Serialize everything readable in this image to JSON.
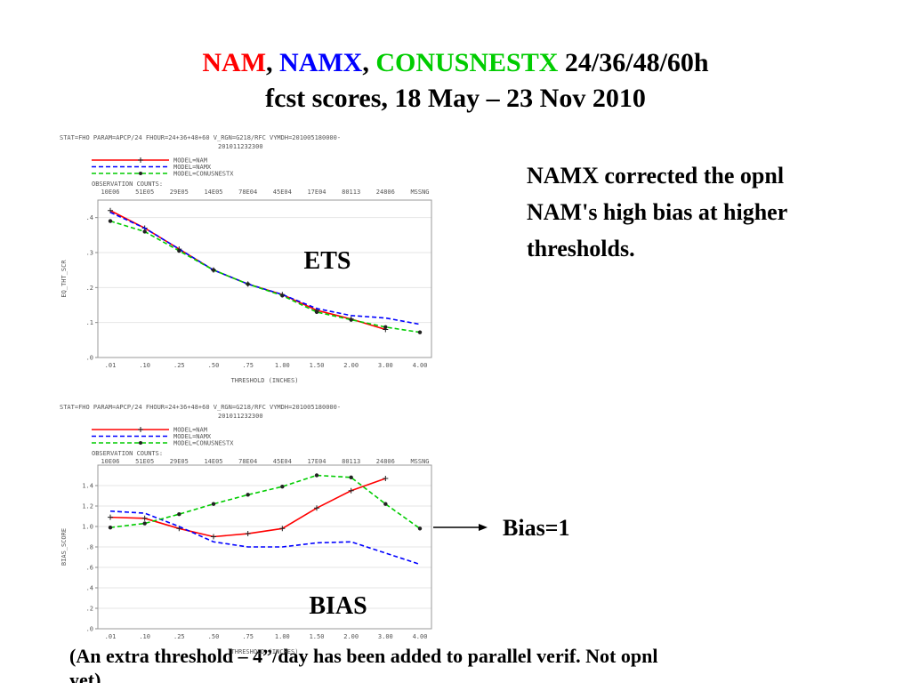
{
  "title_parts": [
    {
      "text": "NAM",
      "color": "#ff0000"
    },
    {
      "text": ",",
      "color": "#000000"
    },
    {
      "text": "NAMX",
      "color": "#0000ff"
    },
    {
      "text": ",",
      "color": "#000000"
    },
    {
      "text": "CONUSNESTX",
      "color": "#00cc00"
    },
    {
      "text": "24/36/48/60h",
      "color": "#000000"
    }
  ],
  "subtitle": "fcst scores, 18 May – 23 Nov 2010",
  "note": [
    "NAMX corrected the opnl",
    "NAM's high bias at higher",
    "thresholds."
  ],
  "bias_note": "Bias=1",
  "footer": [
    "(An extra threshold – 4”/day has been added to parallel verif.  Not opnl",
    "yet)"
  ],
  "chart_data": [
    {
      "type": "line",
      "header": [
        "STAT=FHO PARAM=APCP/24 FHOUR=24+36+48+60 V_RGN=G218/RFC VYMDH=201005180000-",
        "201011232300"
      ],
      "obs_label": "OBSERVATION COUNTS:",
      "obs_counts": [
        "10E06",
        "51E05",
        "29E05",
        "14E05",
        "78E04",
        "45E04",
        "17E04",
        "80113",
        "24806",
        "MSSNG"
      ],
      "annotation": "ETS",
      "ylabel": "EQ_THT_SCR",
      "xlabel": "THRESHOLD (INCHES)",
      "categories": [
        ".01",
        ".10",
        ".25",
        ".50",
        ".75",
        "1.00",
        "1.50",
        "2.00",
        "3.00",
        "4.00"
      ],
      "ylim": [
        0,
        0.45
      ],
      "yticks": [
        {
          "value": 0,
          "label": ".0"
        },
        {
          "value": 0.1,
          "label": ".1"
        },
        {
          "value": 0.2,
          "label": ".2"
        },
        {
          "value": 0.3,
          "label": ".3"
        },
        {
          "value": 0.4,
          "label": ".4"
        }
      ],
      "grid": true,
      "series": [
        {
          "name": "MODEL=NAM",
          "color": "#ff0000",
          "style": "solid",
          "marker": "plus",
          "values": [
            0.42,
            0.37,
            0.31,
            0.25,
            0.21,
            0.18,
            0.135,
            0.11,
            0.08,
            null
          ]
        },
        {
          "name": "MODEL=NAMX",
          "color": "#0000ff",
          "style": "dashed",
          "marker": "none",
          "values": [
            0.415,
            0.37,
            0.31,
            0.25,
            0.21,
            0.18,
            0.14,
            0.12,
            0.113,
            0.095
          ]
        },
        {
          "name": "MODEL=CONUSNESTX",
          "color": "#00cc00",
          "style": "dashed",
          "marker": "circle",
          "values": [
            0.39,
            0.36,
            0.305,
            0.25,
            0.21,
            0.177,
            0.13,
            0.108,
            0.087,
            0.072
          ]
        }
      ]
    },
    {
      "type": "line",
      "header": [
        "STAT=FHO PARAM=APCP/24 FHOUR=24+36+48+60 V_RGN=G218/RFC VYMDH=201005180000-",
        "201011232300"
      ],
      "obs_label": "OBSERVATION COUNTS:",
      "obs_counts": [
        "10E06",
        "51E05",
        "29E05",
        "14E05",
        "78E04",
        "45E04",
        "17E04",
        "80113",
        "24806",
        "MSSNG"
      ],
      "annotation": "BIAS",
      "ylabel": "BIAS_SCORE",
      "xlabel": "THRESHOLD (INCHES)",
      "categories": [
        ".01",
        ".10",
        ".25",
        ".50",
        ".75",
        "1.00",
        "1.50",
        "2.00",
        "3.00",
        "4.00"
      ],
      "ylim": [
        0,
        1.6
      ],
      "yticks": [
        {
          "value": 0,
          "label": ".0"
        },
        {
          "value": 0.2,
          "label": ".2"
        },
        {
          "value": 0.4,
          "label": ".4"
        },
        {
          "value": 0.6,
          "label": ".6"
        },
        {
          "value": 0.8,
          "label": ".8"
        },
        {
          "value": 1.0,
          "label": "1.0"
        },
        {
          "value": 1.2,
          "label": "1.2"
        },
        {
          "value": 1.4,
          "label": "1.4"
        }
      ],
      "grid": true,
      "series": [
        {
          "name": "MODEL=NAM",
          "color": "#ff0000",
          "style": "solid",
          "marker": "plus",
          "values": [
            1.09,
            1.08,
            0.98,
            0.9,
            0.93,
            0.98,
            1.18,
            1.35,
            1.47,
            null
          ]
        },
        {
          "name": "MODEL=NAMX",
          "color": "#0000ff",
          "style": "dashed",
          "marker": "none",
          "values": [
            1.15,
            1.13,
            1.0,
            0.85,
            0.8,
            0.8,
            0.84,
            0.85,
            0.74,
            0.63
          ]
        },
        {
          "name": "MODEL=CONUSNESTX",
          "color": "#00cc00",
          "style": "dashed",
          "marker": "circle",
          "values": [
            0.99,
            1.03,
            1.12,
            1.22,
            1.31,
            1.39,
            1.5,
            1.48,
            1.22,
            0.98
          ]
        }
      ]
    }
  ]
}
